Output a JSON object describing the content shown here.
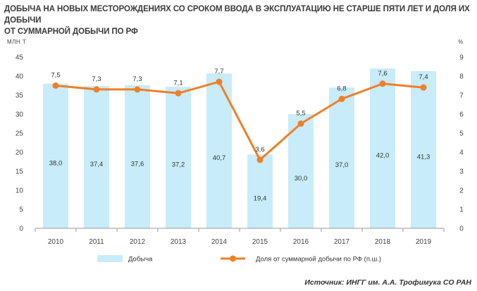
{
  "chart_data": {
    "type": "bar",
    "title_lines": [
      "ДОБЫЧА НА НОВЫХ МЕСТОРОЖДЕНИЯХ СО СРОКОМ ВВОДА В ЭКСПЛУАТАЦИЮ НЕ СТАРШЕ ПЯТИ ЛЕТ И ДОЛЯ ИХ ДОБЫЧИ",
      "ОТ СУММАРНОЙ ДОБЫЧИ ПО РФ"
    ],
    "categories": [
      "2010",
      "2011",
      "2012",
      "2013",
      "2014",
      "2015",
      "2016",
      "2017",
      "2018",
      "2019"
    ],
    "series": [
      {
        "name": "Добыча",
        "type": "bar",
        "axis": "left",
        "color": "#c8ecf9",
        "values": [
          38.0,
          37.4,
          37.6,
          37.2,
          40.7,
          19.4,
          30.0,
          37.0,
          42.0,
          41.3
        ],
        "labels": [
          "38,0",
          "37,4",
          "37,6",
          "37,2",
          "40,7",
          "19,4",
          "30,0",
          "37,0",
          "42,0",
          "41,3"
        ]
      },
      {
        "name": "Доля от суммарной добычи по РФ (п.ш.)",
        "type": "line",
        "axis": "right",
        "color": "#f07f2a",
        "values": [
          7.5,
          7.3,
          7.3,
          7.1,
          7.7,
          3.6,
          5.5,
          6.8,
          7.6,
          7.4
        ],
        "labels": [
          "7,5",
          "7,3",
          "7,3",
          "7,1",
          "7,7",
          "3,6",
          "5,5",
          "6,8",
          "7,6",
          "7,4"
        ]
      }
    ],
    "left_axis": {
      "unit": "МЛН Т",
      "ylim": [
        0,
        45
      ],
      "ticks": [
        "0",
        "5",
        "10",
        "15",
        "20",
        "25",
        "30",
        "35",
        "40",
        "45"
      ]
    },
    "right_axis": {
      "unit": "%",
      "ylim": [
        0,
        9
      ],
      "ticks": [
        "0",
        "1",
        "2",
        "3",
        "4",
        "5",
        "6",
        "7",
        "8",
        "9"
      ]
    },
    "grid": false,
    "legend_position": "bottom"
  },
  "source": "Источник: ИНГГ им. А.А. Трофимука СО РАН"
}
